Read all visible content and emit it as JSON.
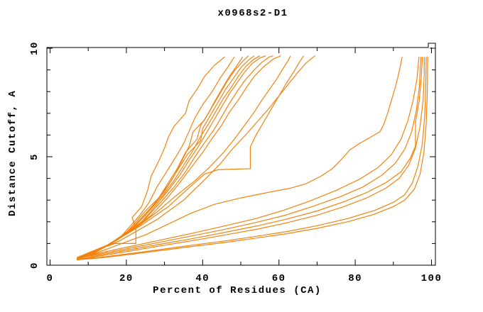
{
  "window": {
    "background": "#ffffff"
  },
  "chart_data": {
    "type": "line",
    "title": "x0968s2-D1",
    "xlabel": "Percent of Residues (CA)",
    "ylabel": "Distance Cutoff, A",
    "xlim": [
      0,
      100
    ],
    "ylim": [
      0,
      10
    ],
    "grid": false,
    "legend": "none",
    "line_color": "#f3830f",
    "axis_color": "#000000",
    "x_major_ticks": [
      0,
      20,
      40,
      60,
      80,
      100
    ],
    "x_major_tick_labels": [
      "0",
      "20",
      "40",
      "60",
      "80",
      "100"
    ],
    "x_minor_ticks": [
      10,
      30,
      50,
      70,
      90
    ],
    "y_major_ticks": [
      0,
      5,
      10
    ],
    "y_major_tick_labels": [
      "0",
      "5",
      "10"
    ],
    "y_minor_ticks": [
      1,
      2,
      3,
      4,
      6,
      7,
      8,
      9
    ],
    "series": [
      [
        [
          7.0,
          0.25
        ],
        [
          10,
          0.45
        ],
        [
          13,
          0.75
        ],
        [
          17,
          1.0
        ],
        [
          22.5,
          1.0
        ],
        [
          22.5,
          1.7
        ],
        [
          21.5,
          2.2
        ],
        [
          24,
          2.7
        ],
        [
          25.5,
          3.4
        ],
        [
          26.5,
          4.1
        ],
        [
          28.5,
          4.8
        ],
        [
          30,
          5.4
        ],
        [
          31,
          5.9
        ],
        [
          32.5,
          6.4
        ],
        [
          35.5,
          7.0
        ],
        [
          36.5,
          7.6
        ],
        [
          38.5,
          8.1
        ],
        [
          40.5,
          8.7
        ],
        [
          43,
          9.2
        ],
        [
          45.8,
          9.6
        ]
      ],
      [
        [
          7.0,
          0.25
        ],
        [
          11,
          0.5
        ],
        [
          14.5,
          0.85
        ],
        [
          18,
          1.2
        ],
        [
          20.5,
          1.7
        ],
        [
          23.5,
          2.3
        ],
        [
          26,
          2.9
        ],
        [
          28,
          3.6
        ],
        [
          30.5,
          4.3
        ],
        [
          33,
          5.0
        ],
        [
          35,
          5.6
        ],
        [
          36.5,
          6.2
        ],
        [
          38,
          6.8
        ],
        [
          40,
          7.4
        ],
        [
          42.5,
          8.0
        ],
        [
          44.5,
          8.6
        ],
        [
          46.5,
          9.1
        ],
        [
          48.3,
          9.6
        ]
      ],
      [
        [
          7.0,
          0.25
        ],
        [
          11.5,
          0.55
        ],
        [
          15.5,
          0.95
        ],
        [
          19.5,
          1.4
        ],
        [
          22,
          1.9
        ],
        [
          25,
          2.5
        ],
        [
          28.5,
          3.1
        ],
        [
          31,
          3.8
        ],
        [
          33.5,
          4.5
        ],
        [
          35.5,
          5.2
        ],
        [
          38.5,
          5.8
        ],
        [
          39.5,
          6.45
        ],
        [
          41.5,
          7.0
        ],
        [
          43,
          7.5
        ],
        [
          45,
          8.1
        ],
        [
          47,
          8.7
        ],
        [
          49,
          9.2
        ],
        [
          50.5,
          9.6
        ]
      ],
      [
        [
          7.0,
          0.25
        ],
        [
          12,
          0.6
        ],
        [
          16.5,
          1.05
        ],
        [
          20.5,
          1.55
        ],
        [
          23.5,
          2.1
        ],
        [
          27,
          2.75
        ],
        [
          30,
          3.4
        ],
        [
          32.5,
          4.1
        ],
        [
          34.5,
          4.8
        ],
        [
          36.5,
          5.5
        ],
        [
          37.5,
          6.15
        ],
        [
          40.5,
          6.7
        ],
        [
          42.5,
          7.3
        ],
        [
          44.5,
          7.9
        ],
        [
          46.5,
          8.5
        ],
        [
          48.5,
          9.0
        ],
        [
          50.5,
          9.4
        ],
        [
          52,
          9.65
        ]
      ],
      [
        [
          7.0,
          0.25
        ],
        [
          12.5,
          0.65
        ],
        [
          17,
          1.15
        ],
        [
          21.5,
          1.7
        ],
        [
          25,
          2.3
        ],
        [
          28,
          3.0
        ],
        [
          31,
          3.7
        ],
        [
          33.5,
          4.4
        ],
        [
          36,
          5.1
        ],
        [
          39.5,
          5.75
        ],
        [
          40,
          6.3
        ],
        [
          42,
          6.9
        ],
        [
          44,
          7.5
        ],
        [
          46,
          8.1
        ],
        [
          48,
          8.6
        ],
        [
          50,
          9.1
        ],
        [
          52,
          9.45
        ],
        [
          53.5,
          9.65
        ]
      ],
      [
        [
          7.0,
          0.25
        ],
        [
          13,
          0.7
        ],
        [
          18,
          1.25
        ],
        [
          22.5,
          1.85
        ],
        [
          26,
          2.5
        ],
        [
          29.5,
          3.2
        ],
        [
          32.5,
          3.9
        ],
        [
          35,
          4.6
        ],
        [
          37.5,
          5.3
        ],
        [
          39.5,
          5.95
        ],
        [
          41.5,
          6.5
        ],
        [
          43.5,
          7.1
        ],
        [
          45.5,
          7.7
        ],
        [
          47.5,
          8.2
        ],
        [
          49.5,
          8.75
        ],
        [
          51.5,
          9.2
        ],
        [
          53.5,
          9.5
        ],
        [
          55,
          9.65
        ]
      ],
      [
        [
          7.0,
          0.25
        ],
        [
          13.5,
          0.75
        ],
        [
          19,
          1.35
        ],
        [
          24,
          2.0
        ],
        [
          27.5,
          2.7
        ],
        [
          31,
          3.45
        ],
        [
          34,
          4.15
        ],
        [
          36.5,
          4.85
        ],
        [
          39,
          5.5
        ],
        [
          41,
          6.1
        ],
        [
          43,
          6.7
        ],
        [
          45,
          7.3
        ],
        [
          47,
          7.9
        ],
        [
          49,
          8.4
        ],
        [
          51,
          8.9
        ],
        [
          53,
          9.3
        ],
        [
          55,
          9.55
        ],
        [
          56.5,
          9.65
        ]
      ],
      [
        [
          7.0,
          0.3
        ],
        [
          14,
          0.8
        ],
        [
          20,
          1.45
        ],
        [
          25,
          2.15
        ],
        [
          29,
          2.9
        ],
        [
          32.5,
          3.6
        ],
        [
          35.5,
          4.3
        ],
        [
          38,
          5.0
        ],
        [
          40.5,
          5.65
        ],
        [
          43,
          6.25
        ],
        [
          45,
          6.85
        ],
        [
          47,
          7.45
        ],
        [
          49,
          8.0
        ],
        [
          51,
          8.5
        ],
        [
          53.5,
          9.0
        ],
        [
          55.5,
          9.35
        ],
        [
          57.5,
          9.6
        ],
        [
          58.5,
          9.65
        ]
      ],
      [
        [
          7.0,
          0.3
        ],
        [
          14.5,
          0.85
        ],
        [
          21,
          1.55
        ],
        [
          26.5,
          2.3
        ],
        [
          30.5,
          3.05
        ],
        [
          34,
          3.8
        ],
        [
          37,
          4.5
        ],
        [
          40,
          5.2
        ],
        [
          42.5,
          5.85
        ],
        [
          45,
          6.45
        ],
        [
          47,
          7.05
        ],
        [
          49.5,
          7.65
        ],
        [
          51.5,
          8.2
        ],
        [
          53.5,
          8.7
        ],
        [
          56,
          9.15
        ],
        [
          58.5,
          9.5
        ],
        [
          60.5,
          9.65
        ]
      ],
      [
        [
          7.0,
          0.3
        ],
        [
          15,
          0.9
        ],
        [
          22,
          1.65
        ],
        [
          28,
          2.45
        ],
        [
          33,
          3.2
        ],
        [
          38,
          3.9
        ],
        [
          42,
          4.55
        ],
        [
          45.5,
          5.2
        ],
        [
          48.5,
          5.85
        ],
        [
          51,
          6.45
        ],
        [
          53.5,
          7.05
        ],
        [
          55.5,
          7.6
        ],
        [
          57.5,
          8.1
        ],
        [
          59.5,
          8.6
        ],
        [
          61,
          9.05
        ],
        [
          62.5,
          9.45
        ],
        [
          63,
          9.65
        ]
      ],
      [
        [
          7.0,
          0.35
        ],
        [
          16,
          1.0
        ],
        [
          24,
          1.85
        ],
        [
          31,
          2.7
        ],
        [
          36,
          3.5
        ],
        [
          40.5,
          4.2
        ],
        [
          44,
          4.4
        ],
        [
          52.5,
          4.45
        ],
        [
          52.5,
          5.45
        ],
        [
          54,
          6.0
        ],
        [
          56,
          6.6
        ],
        [
          58,
          7.2
        ],
        [
          60,
          7.8
        ],
        [
          62,
          8.4
        ],
        [
          64,
          8.95
        ],
        [
          65.5,
          9.4
        ],
        [
          66.5,
          9.65
        ]
      ],
      [
        [
          7.0,
          0.35
        ],
        [
          18,
          1.1
        ],
        [
          28,
          2.1
        ],
        [
          35,
          3.0
        ],
        [
          40,
          3.85
        ],
        [
          44.5,
          4.65
        ],
        [
          48,
          5.4
        ],
        [
          51.5,
          6.05
        ],
        [
          54.5,
          6.65
        ],
        [
          57.5,
          7.25
        ],
        [
          60,
          7.8
        ],
        [
          62.5,
          8.35
        ],
        [
          65,
          8.9
        ],
        [
          67,
          9.3
        ],
        [
          68.7,
          9.55
        ],
        [
          69.5,
          9.65
        ]
      ],
      [
        [
          7.0,
          0.25
        ],
        [
          14,
          0.35
        ],
        [
          22,
          0.52
        ],
        [
          30,
          0.7
        ],
        [
          38,
          0.88
        ],
        [
          46,
          1.05
        ],
        [
          54,
          1.25
        ],
        [
          62,
          1.45
        ],
        [
          70,
          1.7
        ],
        [
          78,
          2.0
        ],
        [
          85,
          2.35
        ],
        [
          90,
          2.7
        ],
        [
          93,
          3.0
        ],
        [
          95.5,
          3.5
        ],
        [
          97,
          4.2
        ],
        [
          98,
          5.2
        ],
        [
          98.6,
          6.5
        ],
        [
          98.9,
          8.0
        ],
        [
          99,
          9.6
        ]
      ],
      [
        [
          7.0,
          0.25
        ],
        [
          14,
          0.38
        ],
        [
          22,
          0.56
        ],
        [
          30,
          0.75
        ],
        [
          38,
          0.94
        ],
        [
          46,
          1.12
        ],
        [
          54,
          1.33
        ],
        [
          62,
          1.55
        ],
        [
          70,
          1.82
        ],
        [
          78,
          2.15
        ],
        [
          85,
          2.52
        ],
        [
          90,
          2.9
        ],
        [
          93,
          3.25
        ],
        [
          95,
          3.8
        ],
        [
          96.5,
          4.6
        ],
        [
          97.6,
          5.6
        ],
        [
          98.2,
          6.8
        ],
        [
          98.5,
          8.1
        ],
        [
          98.6,
          9.6
        ]
      ],
      [
        [
          7.0,
          0.25
        ],
        [
          14,
          0.45
        ],
        [
          22,
          0.68
        ],
        [
          30,
          0.92
        ],
        [
          38,
          1.15
        ],
        [
          46,
          1.4
        ],
        [
          54,
          1.65
        ],
        [
          62,
          1.95
        ],
        [
          70,
          2.3
        ],
        [
          77,
          2.7
        ],
        [
          83,
          3.1
        ],
        [
          88,
          3.55
        ],
        [
          91.5,
          4.0
        ],
        [
          94,
          4.6
        ],
        [
          95.8,
          5.4
        ],
        [
          97,
          6.4
        ],
        [
          97.8,
          7.6
        ],
        [
          98.1,
          8.8
        ],
        [
          98.1,
          9.6
        ]
      ],
      [
        [
          7.0,
          0.25
        ],
        [
          14,
          0.5
        ],
        [
          22,
          0.75
        ],
        [
          30,
          1.0
        ],
        [
          38,
          1.25
        ],
        [
          46,
          1.52
        ],
        [
          54,
          1.8
        ],
        [
          62,
          2.12
        ],
        [
          70,
          2.5
        ],
        [
          77,
          2.92
        ],
        [
          83,
          3.35
        ],
        [
          88,
          3.8
        ],
        [
          92,
          4.3
        ],
        [
          94.5,
          4.95
        ],
        [
          95.8,
          5.5
        ],
        [
          95.8,
          6.6
        ],
        [
          96.8,
          7.6
        ],
        [
          97.3,
          8.6
        ],
        [
          97.6,
          9.6
        ]
      ],
      [
        [
          7.0,
          0.3
        ],
        [
          14,
          0.55
        ],
        [
          22,
          0.82
        ],
        [
          30,
          1.1
        ],
        [
          38,
          1.38
        ],
        [
          46,
          1.66
        ],
        [
          54,
          1.97
        ],
        [
          62,
          2.32
        ],
        [
          69,
          2.72
        ],
        [
          76,
          3.15
        ],
        [
          82,
          3.6
        ],
        [
          87,
          4.15
        ],
        [
          90.5,
          4.7
        ],
        [
          93,
          5.35
        ],
        [
          94.8,
          6.15
        ],
        [
          96,
          7.1
        ],
        [
          96.8,
          8.2
        ],
        [
          97.2,
          9.6
        ]
      ],
      [
        [
          7.0,
          0.3
        ],
        [
          14,
          0.6
        ],
        [
          22,
          0.9
        ],
        [
          30,
          1.2
        ],
        [
          38,
          1.5
        ],
        [
          46,
          1.82
        ],
        [
          54,
          2.15
        ],
        [
          61,
          2.52
        ],
        [
          68,
          2.95
        ],
        [
          75,
          3.45
        ],
        [
          81,
          3.95
        ],
        [
          86,
          4.5
        ],
        [
          89.5,
          5.1
        ],
        [
          92,
          5.8
        ],
        [
          93.8,
          6.65
        ],
        [
          95.2,
          7.6
        ],
        [
          96.2,
          8.6
        ],
        [
          96.7,
          9.6
        ]
      ],
      [
        [
          7.0,
          0.3
        ],
        [
          12,
          0.55
        ],
        [
          18,
          0.95
        ],
        [
          25,
          1.4
        ],
        [
          31,
          1.9
        ],
        [
          37,
          2.4
        ],
        [
          43,
          2.8
        ],
        [
          50,
          3.1
        ],
        [
          57,
          3.35
        ],
        [
          63,
          3.55
        ],
        [
          67,
          3.75
        ],
        [
          71,
          4.1
        ],
        [
          74,
          4.45
        ],
        [
          76,
          4.8
        ],
        [
          78.5,
          5.3
        ],
        [
          81,
          5.6
        ],
        [
          84,
          5.9
        ],
        [
          86.5,
          6.15
        ],
        [
          87.5,
          6.5
        ],
        [
          88.5,
          7.0
        ],
        [
          89.5,
          7.6
        ],
        [
          90.5,
          8.2
        ],
        [
          91.5,
          8.9
        ],
        [
          92.3,
          9.6
        ]
      ]
    ]
  }
}
